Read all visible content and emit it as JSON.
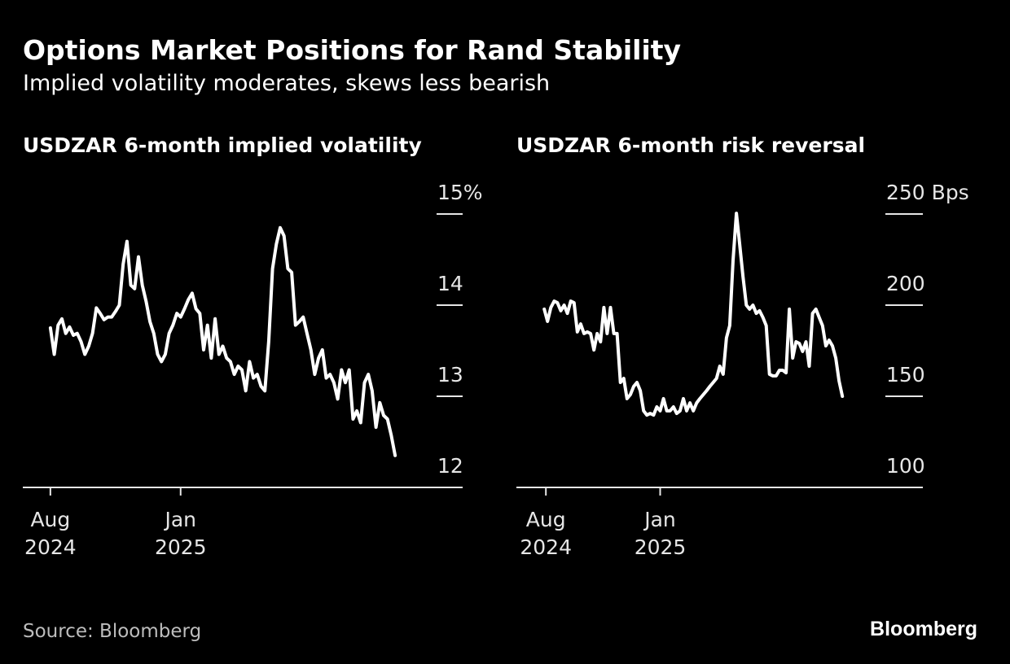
{
  "title": "Options Market Positions for Rand Stability",
  "subtitle": "Implied volatility moderates, skews less bearish",
  "source": "Source: Bloomberg",
  "logo": "Bloomberg",
  "chart_data": [
    {
      "type": "line",
      "title": "USDZAR 6-month implied volatility",
      "series": [
        {
          "color": "#ffffff",
          "values": [
            13.75,
            13.46,
            13.78,
            13.85,
            13.69,
            13.76,
            13.67,
            13.69,
            13.6,
            13.46,
            13.55,
            13.69,
            13.97,
            13.91,
            13.84,
            13.87,
            13.87,
            13.93,
            14.0,
            14.45,
            14.7,
            14.22,
            14.18,
            14.53,
            14.22,
            14.04,
            13.82,
            13.69,
            13.46,
            13.38,
            13.46,
            13.69,
            13.78,
            13.91,
            13.87,
            13.96,
            14.06,
            14.13,
            13.96,
            13.91,
            13.51,
            13.78,
            13.42,
            13.85,
            13.46,
            13.55,
            13.42,
            13.38,
            13.24,
            13.33,
            13.29,
            13.06,
            13.38,
            13.2,
            13.24,
            13.11,
            13.06,
            13.6,
            14.4,
            14.67,
            14.85,
            14.76,
            14.4,
            14.36,
            13.78,
            13.82,
            13.87,
            13.69,
            13.51,
            13.24,
            13.42,
            13.51,
            13.2,
            13.24,
            13.15,
            12.97,
            13.29,
            13.15,
            13.29,
            12.75,
            12.84,
            12.71,
            13.15,
            13.24,
            13.06,
            12.66,
            12.93,
            12.79,
            12.75,
            12.57,
            12.35
          ]
        }
      ],
      "xlim": [
        -7.2,
        107.2
      ],
      "xticks": [
        {
          "value": 0,
          "label": [
            "Aug",
            "2024"
          ]
        },
        {
          "value": 34,
          "label": [
            "Jan",
            "2025"
          ]
        }
      ],
      "ylim": [
        12,
        15
      ],
      "yticks": [
        12,
        13,
        14,
        {
          "value": 15,
          "label": "15%"
        }
      ]
    },
    {
      "type": "line",
      "title": "USDZAR 6-month risk reversal",
      "series": [
        {
          "color": "#ffffff",
          "values": [
            197.8,
            191.1,
            198.7,
            202.2,
            201.3,
            196.9,
            200,
            195.5,
            202.2,
            201.3,
            185.3,
            189.7,
            184.4,
            185.3,
            184.4,
            175.4,
            184.4,
            179.9,
            198.7,
            184.4,
            198.7,
            184.4,
            184.4,
            157.6,
            159.8,
            148.7,
            150.9,
            155.4,
            157.6,
            153.1,
            142.0,
            139.7,
            140.6,
            139.7,
            144.2,
            142.0,
            148.7,
            142.0,
            142.0,
            144.2,
            140.6,
            142.0,
            148.7,
            142.0,
            146.4,
            142.0,
            146.4,
            148.7,
            150.9,
            153.1,
            155.4,
            157.6,
            159.8,
            166.5,
            162.1,
            182.1,
            188.8,
            224.6,
            250.4,
            233.5,
            215.6,
            200,
            197.8,
            200,
            195.5,
            196.9,
            193.3,
            188.8,
            162.1,
            161.2,
            161.2,
            164.3,
            164.3,
            162.9,
            197.8,
            171.0,
            179.9,
            179.0,
            174.6,
            179.9,
            166.5,
            195.5,
            197.8,
            193.3,
            188.8,
            177.7,
            180.8,
            177.7,
            171.0,
            158.5,
            150.0
          ]
        }
      ],
      "xlim": [
        -8.4,
        113.8
      ],
      "xticks": [
        {
          "value": 0.5,
          "label": [
            "Aug",
            "2024"
          ]
        },
        {
          "value": 35,
          "label": [
            "Jan",
            "2025"
          ]
        }
      ],
      "ylim": [
        100,
        250
      ],
      "yticks": [
        100,
        150,
        200,
        {
          "value": 250,
          "label": "250 Bps"
        }
      ]
    }
  ]
}
